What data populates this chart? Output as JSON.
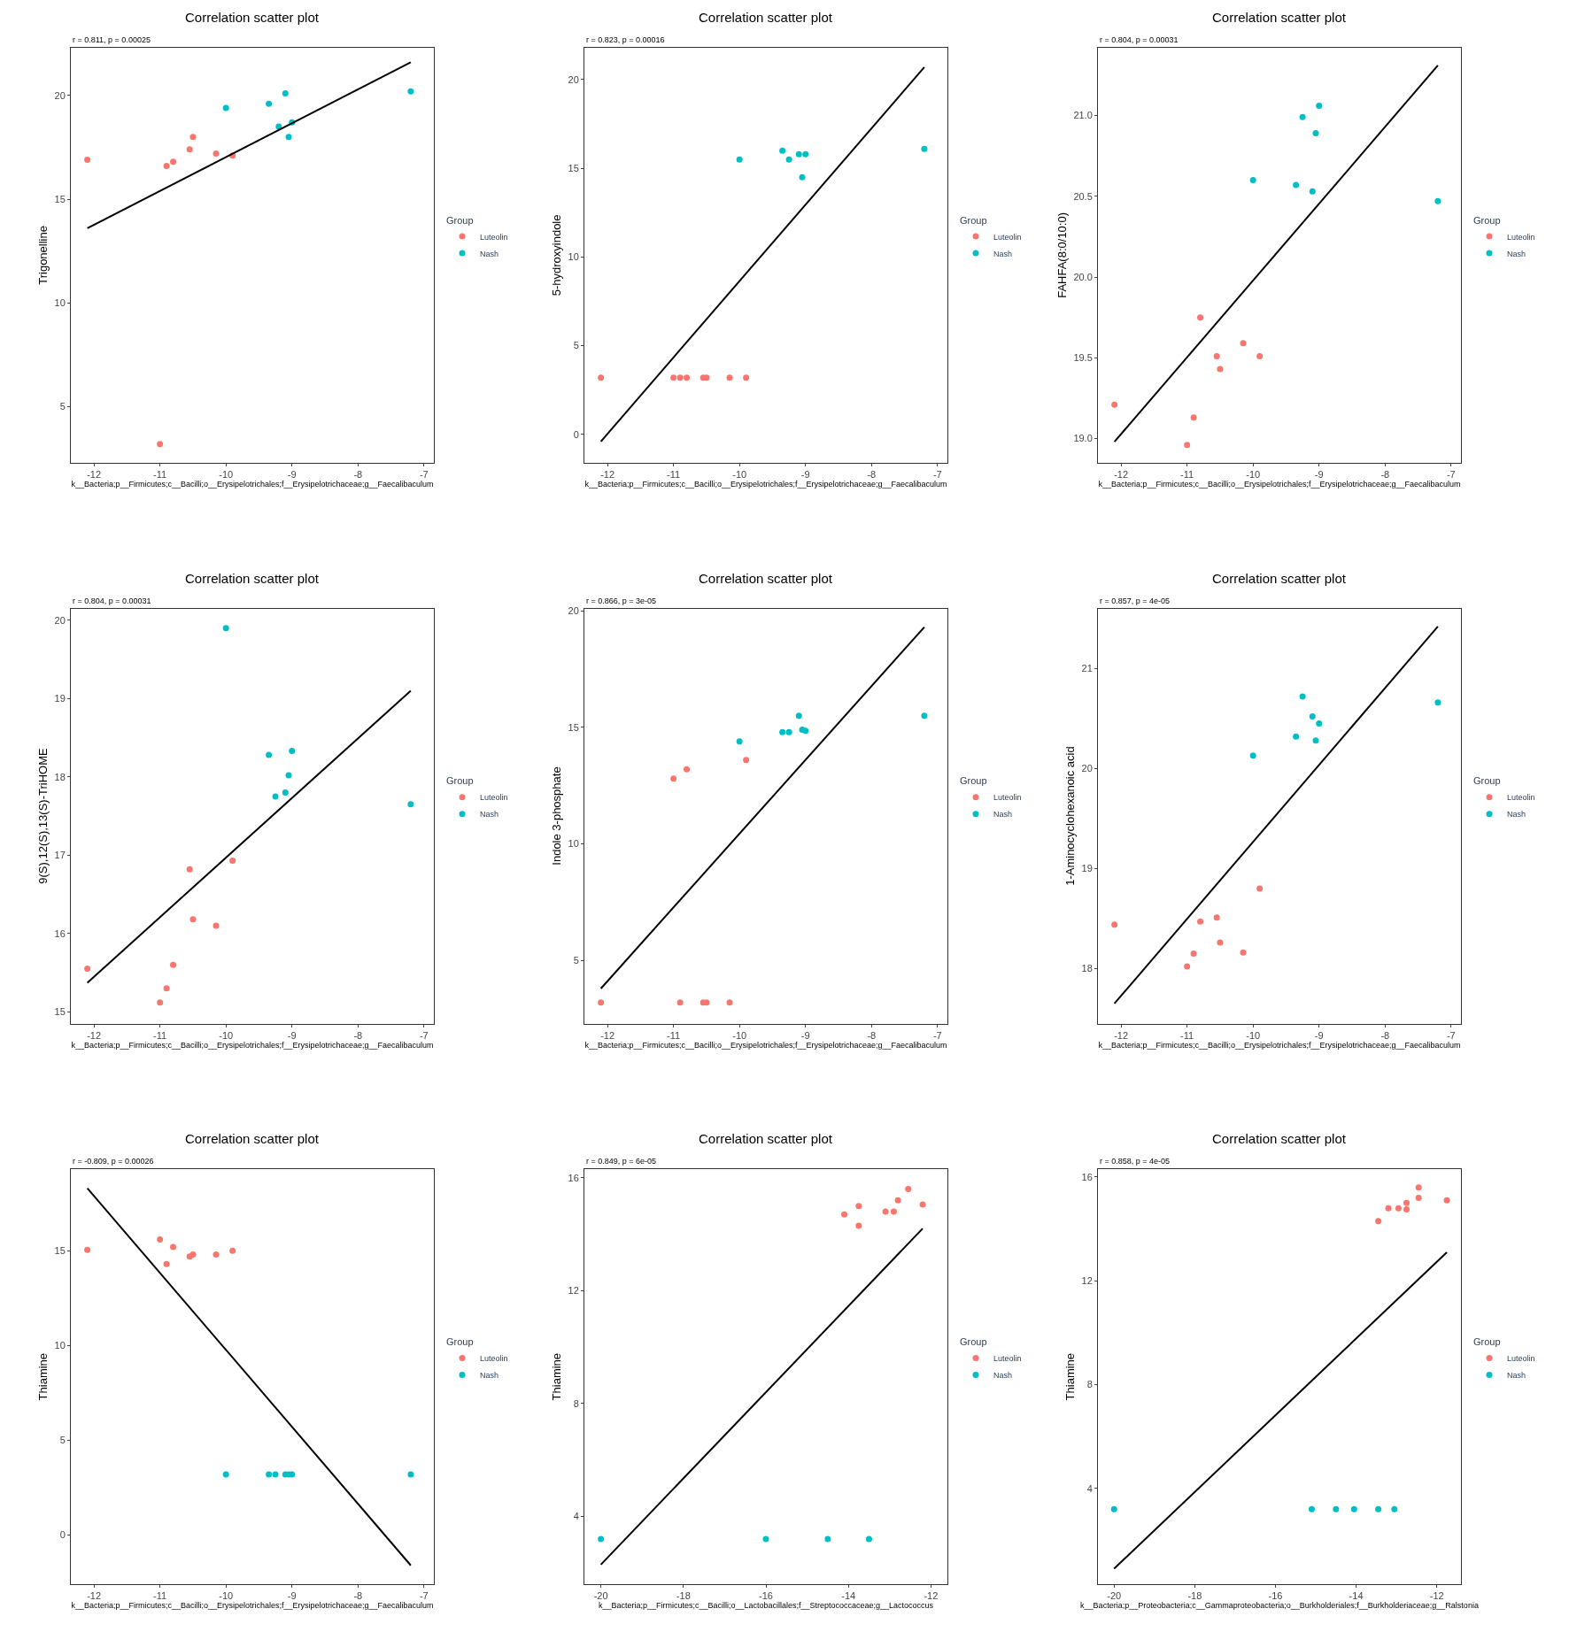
{
  "chart_data": [
    {
      "type": "scatter",
      "title": "Correlation scatter plot",
      "subtitle": "r = 0.811, p = 0.00025",
      "xlabel": "k__Bacteria;p__Firmicutes;c__Bacilli;o__Erysipelotrichales;f__Erysipelotrichaceae;g__Faecalibaculum",
      "ylabel": "Trigonelline",
      "legend_title": "Group",
      "legend": "right",
      "marker": "circle",
      "xlim": [
        -12.35,
        -6.85
      ],
      "xticks": [
        -12,
        -11,
        -10,
        -9,
        -8,
        -7
      ],
      "ylim": [
        2.3,
        22.3
      ],
      "yticks": [
        5,
        10,
        15,
        20
      ],
      "series": [
        {
          "name": "Luteolin",
          "color": "#f8766d",
          "x": [
            -12.1,
            -11.0,
            -10.9,
            -10.8,
            -10.55,
            -10.5,
            -10.15,
            -9.9
          ],
          "values": [
            16.9,
            3.2,
            16.6,
            16.8,
            17.4,
            18.0,
            17.2,
            17.1
          ]
        },
        {
          "name": "Nash",
          "color": "#00bfc4",
          "x": [
            -10.0,
            -9.35,
            -9.2,
            -9.1,
            -9.05,
            -9.0,
            -7.2
          ],
          "values": [
            19.4,
            19.6,
            18.5,
            20.1,
            18.0,
            18.7,
            20.2
          ]
        },
        {
          "type": "line",
          "color": "#000000",
          "x": [
            -12.1,
            -7.2
          ],
          "values": [
            13.6,
            21.6
          ],
          "marker": "none"
        }
      ]
    },
    {
      "type": "scatter",
      "title": "Correlation scatter plot",
      "subtitle": "r = 0.823, p = 0.00016",
      "xlabel": "k__Bacteria;p__Firmicutes;c__Bacilli;o__Erysipelotrichales;f__Erysipelotrichaceae;g__Faecalibaculum",
      "ylabel": "5-hydroxyindole",
      "legend_title": "Group",
      "legend": "right",
      "marker": "circle",
      "xlim": [
        -12.35,
        -6.85
      ],
      "xticks": [
        -12,
        -11,
        -10,
        -9,
        -8,
        -7
      ],
      "ylim": [
        -1.6,
        21.8
      ],
      "yticks": [
        0,
        5,
        10,
        15,
        20
      ],
      "series": [
        {
          "name": "Luteolin",
          "color": "#f8766d",
          "x": [
            -12.1,
            -11.0,
            -10.9,
            -10.8,
            -10.55,
            -10.5,
            -10.15,
            -9.9
          ],
          "values": [
            3.2,
            3.2,
            3.2,
            3.2,
            3.2,
            3.2,
            3.2,
            3.2
          ]
        },
        {
          "name": "Nash",
          "color": "#00bfc4",
          "x": [
            -10.0,
            -9.35,
            -9.25,
            -9.1,
            -9.05,
            -9.0,
            -7.2
          ],
          "values": [
            15.5,
            16.0,
            15.5,
            15.8,
            14.5,
            15.8,
            16.1
          ]
        },
        {
          "type": "line",
          "color": "#000000",
          "x": [
            -12.1,
            -7.2
          ],
          "values": [
            -0.4,
            20.7
          ],
          "marker": "none"
        }
      ]
    },
    {
      "type": "scatter",
      "title": "Correlation scatter plot",
      "subtitle": "r = 0.804, p = 0.00031",
      "xlabel": "k__Bacteria;p__Firmicutes;c__Bacilli;o__Erysipelotrichales;f__Erysipelotrichaceae;g__Faecalibaculum",
      "ylabel": "FAHFA(8:0/10:0)",
      "legend_title": "Group",
      "legend": "right",
      "marker": "circle",
      "xlim": [
        -12.35,
        -6.85
      ],
      "xticks": [
        -12,
        -11,
        -10,
        -9,
        -8,
        -7
      ],
      "ylim": [
        18.85,
        21.42
      ],
      "yticks": [
        {
          "value": 19,
          "label": "19.0"
        },
        19.5,
        {
          "value": 20,
          "label": "20.0"
        },
        20.5,
        {
          "value": 21,
          "label": "21.0"
        }
      ],
      "series": [
        {
          "name": "Luteolin",
          "color": "#f8766d",
          "x": [
            -12.1,
            -11.0,
            -10.9,
            -10.8,
            -10.55,
            -10.5,
            -10.15,
            -9.9
          ],
          "values": [
            19.21,
            18.96,
            19.13,
            19.75,
            19.51,
            19.43,
            19.59,
            19.51
          ]
        },
        {
          "name": "Nash",
          "color": "#00bfc4",
          "x": [
            -10.0,
            -9.35,
            -9.25,
            -9.1,
            -9.05,
            -9.0,
            -7.2
          ],
          "values": [
            20.6,
            20.57,
            20.99,
            20.53,
            20.89,
            21.06,
            20.47
          ]
        },
        {
          "type": "line",
          "color": "#000000",
          "x": [
            -12.1,
            -7.2
          ],
          "values": [
            18.98,
            21.31
          ],
          "marker": "none"
        }
      ]
    },
    {
      "type": "scatter",
      "title": "Correlation scatter plot",
      "subtitle": "r = 0.804, p = 0.00031",
      "xlabel": "k__Bacteria;p__Firmicutes;c__Bacilli;o__Erysipelotrichales;f__Erysipelotrichaceae;g__Faecalibaculum",
      "ylabel": "9(S),12(S),13(S)-TriHOME",
      "legend_title": "Group",
      "legend": "right",
      "marker": "circle",
      "xlim": [
        -12.35,
        -6.85
      ],
      "xticks": [
        -12,
        -11,
        -10,
        -9,
        -8,
        -7
      ],
      "ylim": [
        14.85,
        20.15
      ],
      "yticks": [
        15,
        16,
        17,
        18,
        19,
        20
      ],
      "series": [
        {
          "name": "Luteolin",
          "color": "#f8766d",
          "x": [
            -12.1,
            -11.0,
            -10.9,
            -10.8,
            -10.55,
            -10.5,
            -10.15,
            -9.9
          ],
          "values": [
            15.55,
            15.12,
            15.3,
            15.6,
            16.82,
            16.18,
            16.1,
            16.93
          ]
        },
        {
          "name": "Nash",
          "color": "#00bfc4",
          "x": [
            -10.0,
            -9.35,
            -9.25,
            -9.1,
            -9.05,
            -9.0,
            -7.2
          ],
          "values": [
            19.9,
            18.28,
            17.75,
            17.8,
            18.02,
            18.33,
            17.65
          ]
        },
        {
          "type": "line",
          "color": "#000000",
          "x": [
            -12.1,
            -7.2
          ],
          "values": [
            15.37,
            19.1
          ],
          "marker": "none"
        }
      ]
    },
    {
      "type": "scatter",
      "title": "Correlation scatter plot",
      "subtitle": "r = 0.866, p = 3e-05",
      "xlabel": "k__Bacteria;p__Firmicutes;c__Bacilli;o__Erysipelotrichales;f__Erysipelotrichaceae;g__Faecalibaculum",
      "ylabel": "Indole 3-phosphate",
      "legend_title": "Group",
      "legend": "right",
      "marker": "circle",
      "xlim": [
        -12.35,
        -6.85
      ],
      "xticks": [
        -12,
        -11,
        -10,
        -9,
        -8,
        -7
      ],
      "ylim": [
        2.3,
        20.1
      ],
      "yticks": [
        5,
        10,
        15,
        20
      ],
      "series": [
        {
          "name": "Luteolin",
          "color": "#f8766d",
          "x": [
            -12.1,
            -11.0,
            -10.9,
            -10.8,
            -10.55,
            -10.5,
            -10.15,
            -9.9
          ],
          "values": [
            3.2,
            12.8,
            3.2,
            13.2,
            3.2,
            3.2,
            3.2,
            13.6
          ]
        },
        {
          "name": "Nash",
          "color": "#00bfc4",
          "x": [
            -10.0,
            -9.35,
            -9.25,
            -9.1,
            -9.05,
            -9.0,
            -7.2
          ],
          "values": [
            14.4,
            14.8,
            14.8,
            15.5,
            14.9,
            14.85,
            15.5
          ]
        },
        {
          "type": "line",
          "color": "#000000",
          "x": [
            -12.1,
            -7.2
          ],
          "values": [
            3.8,
            19.3
          ],
          "marker": "none"
        }
      ]
    },
    {
      "type": "scatter",
      "title": "Correlation scatter plot",
      "subtitle": "r = 0.857, p = 4e-05",
      "xlabel": "k__Bacteria;p__Firmicutes;c__Bacilli;o__Erysipelotrichales;f__Erysipelotrichaceae;g__Faecalibaculum",
      "ylabel": "1-Aminocyclohexanoic acid",
      "legend_title": "Group",
      "legend": "right",
      "marker": "circle",
      "xlim": [
        -12.35,
        -6.85
      ],
      "xticks": [
        -12,
        -11,
        -10,
        -9,
        -8,
        -7
      ],
      "ylim": [
        17.45,
        21.6
      ],
      "yticks": [
        18,
        19,
        20,
        21
      ],
      "series": [
        {
          "name": "Luteolin",
          "color": "#f8766d",
          "x": [
            -12.1,
            -11.0,
            -10.9,
            -10.8,
            -10.55,
            -10.5,
            -10.15,
            -9.9
          ],
          "values": [
            18.44,
            18.02,
            18.15,
            18.47,
            18.51,
            18.26,
            18.16,
            18.8
          ]
        },
        {
          "name": "Nash",
          "color": "#00bfc4",
          "x": [
            -10.0,
            -9.35,
            -9.25,
            -9.1,
            -9.05,
            -9.0,
            -7.2
          ],
          "values": [
            20.13,
            20.32,
            20.72,
            20.52,
            20.28,
            20.45,
            20.66
          ]
        },
        {
          "type": "line",
          "color": "#000000",
          "x": [
            -12.1,
            -7.2
          ],
          "values": [
            17.65,
            21.42
          ],
          "marker": "none"
        }
      ]
    },
    {
      "type": "scatter",
      "title": "Correlation scatter plot",
      "subtitle": "r = -0.809, p = 0.00026",
      "xlabel": "k__Bacteria;p__Firmicutes;c__Bacilli;o__Erysipelotrichales;f__Erysipelotrichaceae;g__Faecalibaculum",
      "ylabel": "Thiamine",
      "legend_title": "Group",
      "legend": "right",
      "marker": "circle",
      "xlim": [
        -12.35,
        -6.85
      ],
      "xticks": [
        -12,
        -11,
        -10,
        -9,
        -8,
        -7
      ],
      "ylim": [
        -2.6,
        19.3
      ],
      "yticks": [
        0,
        5,
        10,
        15
      ],
      "series": [
        {
          "name": "Luteolin",
          "color": "#f8766d",
          "x": [
            -12.1,
            -11.0,
            -10.9,
            -10.8,
            -10.55,
            -10.5,
            -10.15,
            -9.9
          ],
          "values": [
            15.05,
            15.6,
            14.3,
            15.2,
            14.7,
            14.8,
            14.8,
            15.0
          ]
        },
        {
          "name": "Nash",
          "color": "#00bfc4",
          "x": [
            -10.0,
            -9.35,
            -9.25,
            -9.1,
            -9.05,
            -9.0,
            -7.2
          ],
          "values": [
            3.2,
            3.2,
            3.2,
            3.2,
            3.2,
            3.2,
            3.2
          ]
        },
        {
          "type": "line",
          "color": "#000000",
          "x": [
            -12.1,
            -7.2
          ],
          "values": [
            18.3,
            -1.6
          ],
          "marker": "none"
        }
      ]
    },
    {
      "type": "scatter",
      "title": "Correlation scatter plot",
      "subtitle": "r = 0.849, p = 6e-05",
      "xlabel": "k__Bacteria;p__Firmicutes;c__Bacilli;o__Lactobacillales;f__Streptococcaceae;g__Lactococcus",
      "ylabel": "Thiamine",
      "legend_title": "Group",
      "legend": "right",
      "marker": "circle",
      "xlim": [
        -20.4,
        -11.6
      ],
      "xticks": [
        -20,
        -18,
        -16,
        -14,
        -12
      ],
      "ylim": [
        1.6,
        16.3
      ],
      "yticks": [
        4,
        8,
        12,
        16
      ],
      "series": [
        {
          "name": "Luteolin",
          "color": "#f8766d",
          "x": [
            -14.1,
            -13.75,
            -13.75,
            -13.1,
            -12.9,
            -12.8,
            -12.55,
            -12.2
          ],
          "values": [
            14.7,
            15.0,
            14.3,
            14.8,
            14.8,
            15.2,
            15.6,
            15.05
          ]
        },
        {
          "name": "Nash",
          "color": "#00bfc4",
          "x": [
            -20.0,
            -16.0,
            -14.5,
            -13.5
          ],
          "values": [
            3.2,
            3.2,
            3.2,
            3.2
          ]
        },
        {
          "type": "line",
          "color": "#000000",
          "x": [
            -20.0,
            -12.2
          ],
          "values": [
            2.3,
            14.2
          ],
          "marker": "none"
        }
      ]
    },
    {
      "type": "scatter",
      "title": "Correlation scatter plot",
      "subtitle": "r = 0.858, p = 4e-05",
      "xlabel": "k__Bacteria;p__Proteobacteria;c__Gammaproteobacteria;o__Burkholderiales;f__Burkholderiaceae;g__Ralstonia",
      "ylabel": "Thiamine",
      "legend_title": "Group",
      "legend": "right",
      "marker": "circle",
      "xlim": [
        -20.4,
        -11.4
      ],
      "xticks": [
        -20,
        -18,
        -16,
        -14,
        -12
      ],
      "ylim": [
        0.3,
        16.3
      ],
      "yticks": [
        4,
        8,
        12,
        16
      ],
      "series": [
        {
          "name": "Luteolin",
          "color": "#f8766d",
          "x": [
            -13.45,
            -13.2,
            -12.95,
            -12.75,
            -12.75,
            -12.45,
            -12.45,
            -11.75
          ],
          "values": [
            14.3,
            14.8,
            14.8,
            14.75,
            15.0,
            15.2,
            15.6,
            15.1
          ]
        },
        {
          "name": "Nash",
          "color": "#00bfc4",
          "x": [
            -20.0,
            -15.1,
            -14.5,
            -14.05,
            -13.45,
            -13.05
          ],
          "values": [
            3.2,
            3.2,
            3.2,
            3.2,
            3.2,
            3.2
          ]
        },
        {
          "type": "line",
          "color": "#000000",
          "x": [
            -20.0,
            -11.75
          ],
          "values": [
            0.9,
            13.1
          ],
          "marker": "none"
        }
      ]
    }
  ]
}
